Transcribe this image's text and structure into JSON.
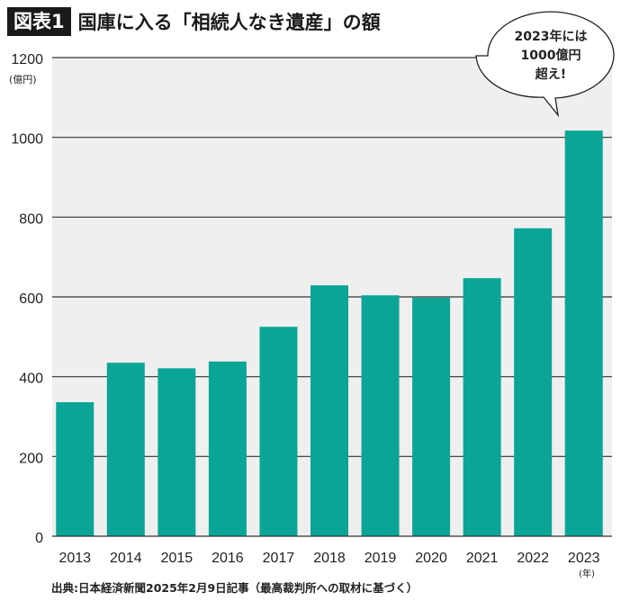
{
  "header": {
    "badge": "図表1",
    "title": "国庫に入る「相続人なき遺産」の額"
  },
  "chart_data": {
    "type": "bar",
    "title": "国庫に入る「相続人なき遺産」の額",
    "categories": [
      "2013",
      "2014",
      "2015",
      "2016",
      "2017",
      "2018",
      "2019",
      "2020",
      "2021",
      "2022",
      "2023"
    ],
    "values": [
      336,
      435,
      421,
      438,
      525,
      629,
      604,
      598,
      647,
      772,
      1017
    ],
    "ylabel": "(億円)",
    "xlabel": "(年)",
    "ylim": [
      0,
      1200
    ],
    "yticks": [
      0,
      200,
      400,
      600,
      800,
      1000,
      1200
    ],
    "grid": true,
    "bar_color": "#0aa597",
    "background_color": "#efefef",
    "annotation": {
      "lines": [
        "2023年には",
        "1000億円",
        "超え!"
      ],
      "target": "2023"
    }
  },
  "source": "出典:日本経済新聞2025年2月9日記事（最高裁判所への取材に基づく）"
}
